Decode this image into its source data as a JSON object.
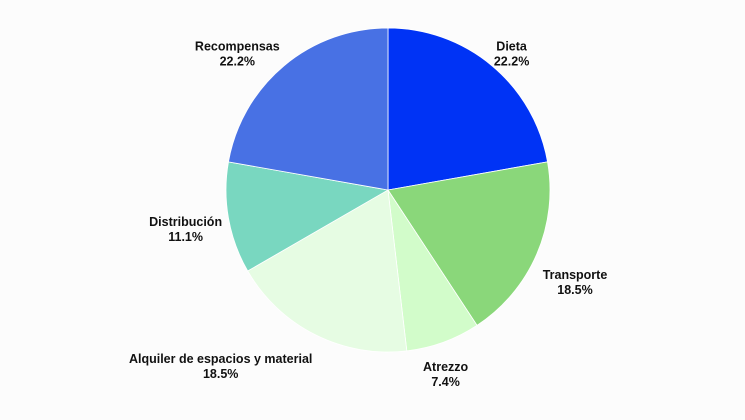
{
  "chart_data": {
    "type": "pie",
    "title": "",
    "start_angle_deg": 0,
    "direction": "clockwise",
    "slices": [
      {
        "label": "Dieta",
        "value": 22.2,
        "display": "22.2%",
        "color": "#0033f5"
      },
      {
        "label": "Transporte",
        "value": 18.5,
        "display": "18.5%",
        "color": "#8ad77a"
      },
      {
        "label": "Atrezzo",
        "value": 7.4,
        "display": "7.4%",
        "color": "#d2fcca"
      },
      {
        "label": "Alquiler de espacios y material",
        "value": 18.5,
        "display": "18.5%",
        "color": "#e6fce3"
      },
      {
        "label": "Distribución",
        "value": 11.1,
        "display": "11.1%",
        "color": "#79d7c0"
      },
      {
        "label": "Recompensas",
        "value": 22.2,
        "display": "22.2%",
        "color": "#4871e4"
      }
    ]
  }
}
